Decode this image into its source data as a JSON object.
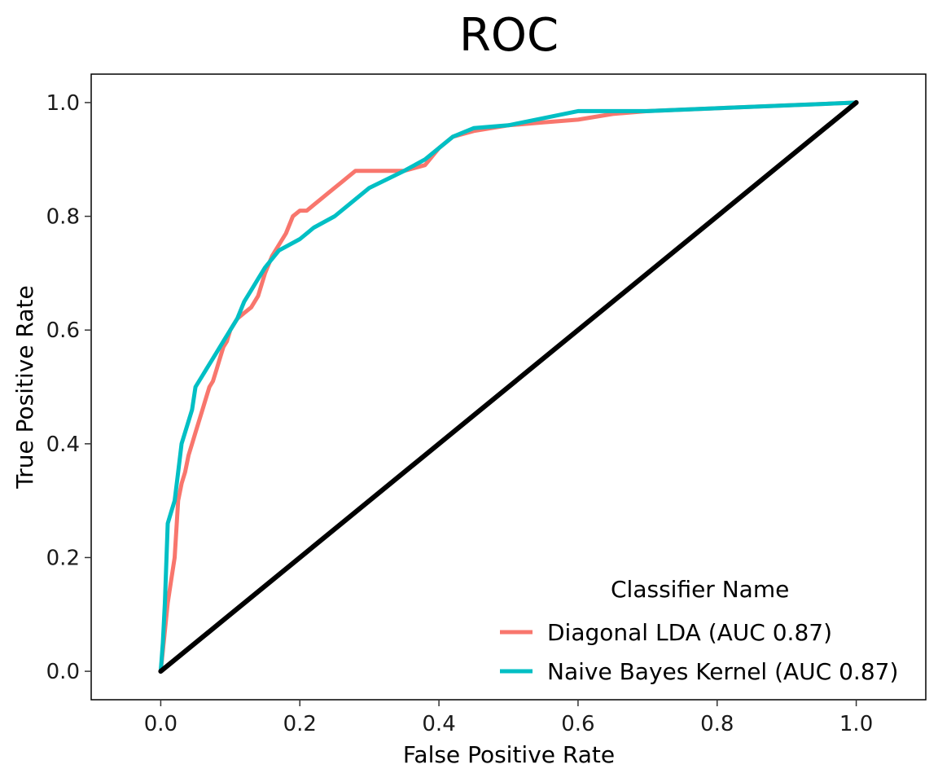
{
  "chart_data": {
    "type": "line",
    "title": "ROC",
    "xlabel": "False Positive Rate",
    "ylabel": "True Positive Rate",
    "xlim": [
      -0.1,
      1.1
    ],
    "ylim": [
      -0.05,
      1.05
    ],
    "xticks": [
      0.0,
      0.2,
      0.4,
      0.6,
      0.8,
      1.0
    ],
    "xtick_labels": [
      "0.0",
      "0.2",
      "0.4",
      "0.6",
      "0.8",
      "1.0"
    ],
    "yticks": [
      0.0,
      0.2,
      0.4,
      0.6,
      0.8,
      1.0
    ],
    "ytick_labels": [
      "0.0",
      "0.2",
      "0.4",
      "0.6",
      "0.8",
      "1.0"
    ],
    "grid": false,
    "legend": {
      "title": "Classifier Name",
      "position": "bottom-right"
    },
    "series": [
      {
        "name": "Diagonal LDA (AUC 0.87)",
        "color": "#F8766D",
        "x": [
          0.0,
          0.005,
          0.01,
          0.015,
          0.02,
          0.025,
          0.03,
          0.035,
          0.04,
          0.045,
          0.05,
          0.055,
          0.06,
          0.065,
          0.07,
          0.075,
          0.08,
          0.085,
          0.09,
          0.095,
          0.1,
          0.105,
          0.11,
          0.12,
          0.13,
          0.14,
          0.15,
          0.16,
          0.17,
          0.18,
          0.19,
          0.2,
          0.21,
          0.22,
          0.23,
          0.24,
          0.25,
          0.26,
          0.27,
          0.28,
          0.3,
          0.35,
          0.38,
          0.4,
          0.42,
          0.45,
          0.5,
          0.55,
          0.6,
          0.65,
          0.7,
          0.8,
          0.9,
          1.0
        ],
        "y": [
          0.0,
          0.06,
          0.12,
          0.16,
          0.2,
          0.3,
          0.33,
          0.35,
          0.38,
          0.4,
          0.42,
          0.44,
          0.46,
          0.48,
          0.5,
          0.51,
          0.53,
          0.55,
          0.57,
          0.58,
          0.6,
          0.61,
          0.62,
          0.63,
          0.64,
          0.66,
          0.7,
          0.73,
          0.75,
          0.77,
          0.8,
          0.81,
          0.81,
          0.82,
          0.83,
          0.84,
          0.85,
          0.86,
          0.87,
          0.88,
          0.88,
          0.88,
          0.89,
          0.92,
          0.94,
          0.95,
          0.96,
          0.965,
          0.97,
          0.98,
          0.985,
          0.99,
          0.995,
          1.0
        ]
      },
      {
        "name": "Naive Bayes Kernel (AUC 0.87)",
        "color": "#00BFC4",
        "x": [
          0.0,
          0.003,
          0.006,
          0.01,
          0.015,
          0.02,
          0.025,
          0.03,
          0.035,
          0.04,
          0.045,
          0.05,
          0.055,
          0.06,
          0.065,
          0.07,
          0.075,
          0.08,
          0.09,
          0.1,
          0.11,
          0.12,
          0.13,
          0.14,
          0.15,
          0.17,
          0.2,
          0.22,
          0.25,
          0.28,
          0.3,
          0.35,
          0.38,
          0.42,
          0.45,
          0.5,
          0.52,
          0.6,
          0.7,
          0.8,
          0.9,
          1.0
        ],
        "y": [
          0.0,
          0.05,
          0.12,
          0.26,
          0.28,
          0.3,
          0.35,
          0.4,
          0.42,
          0.44,
          0.46,
          0.5,
          0.51,
          0.52,
          0.53,
          0.54,
          0.55,
          0.56,
          0.58,
          0.6,
          0.62,
          0.65,
          0.67,
          0.69,
          0.71,
          0.74,
          0.76,
          0.78,
          0.8,
          0.83,
          0.85,
          0.88,
          0.9,
          0.94,
          0.955,
          0.96,
          0.965,
          0.985,
          0.985,
          0.99,
          0.995,
          1.0
        ]
      },
      {
        "name": "",
        "color": "#000000",
        "x": [
          0.0,
          1.0
        ],
        "y": [
          0.0,
          1.0
        ]
      }
    ]
  }
}
